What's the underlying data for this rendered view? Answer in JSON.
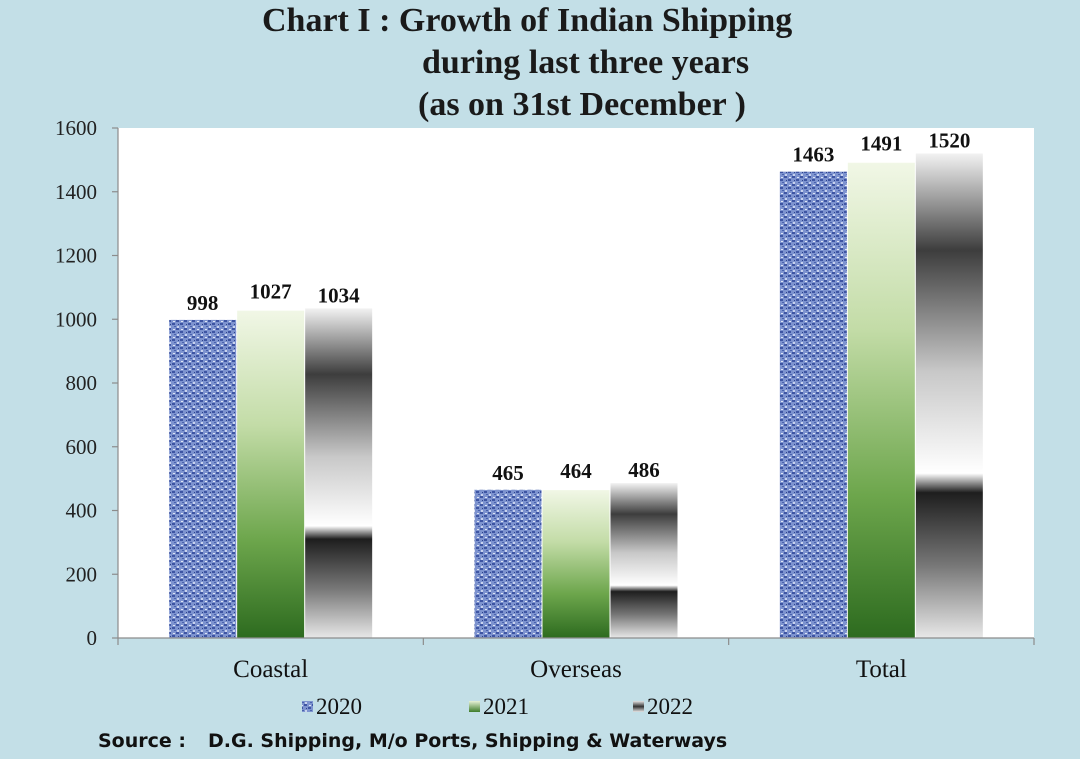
{
  "title": {
    "line1": "Chart I : Growth of Indian Shipping",
    "line2": "during last three years",
    "line3": "(as on 31st December )"
  },
  "chart_data": {
    "type": "bar",
    "title": "Chart I : Growth of Indian Shipping during last three years (as on 31st December )",
    "categories": [
      "Coastal",
      "Overseas",
      "Total"
    ],
    "series": [
      {
        "name": "2020",
        "values": [
          998,
          465,
          1463
        ]
      },
      {
        "name": "2021",
        "values": [
          1027,
          464,
          1491
        ]
      },
      {
        "name": "2022",
        "values": [
          1034,
          486,
          1520
        ]
      }
    ],
    "yticks": [
      0,
      200,
      400,
      600,
      800,
      1000,
      1200,
      1400,
      1600
    ],
    "ylim": [
      0,
      1600
    ],
    "xlabel": "",
    "ylabel": "",
    "legend_position": "bottom",
    "grid": false
  },
  "source": {
    "label": "Source :",
    "text": "D.G. Shipping, M/o Ports, Shipping & Waterways"
  },
  "colors": {
    "background": "#c3dfe7",
    "plot_area": "#ffffff",
    "series_2020": "#6b82c4",
    "series_2021": "#5e9c45",
    "series_2022": "#7a7a7a"
  }
}
